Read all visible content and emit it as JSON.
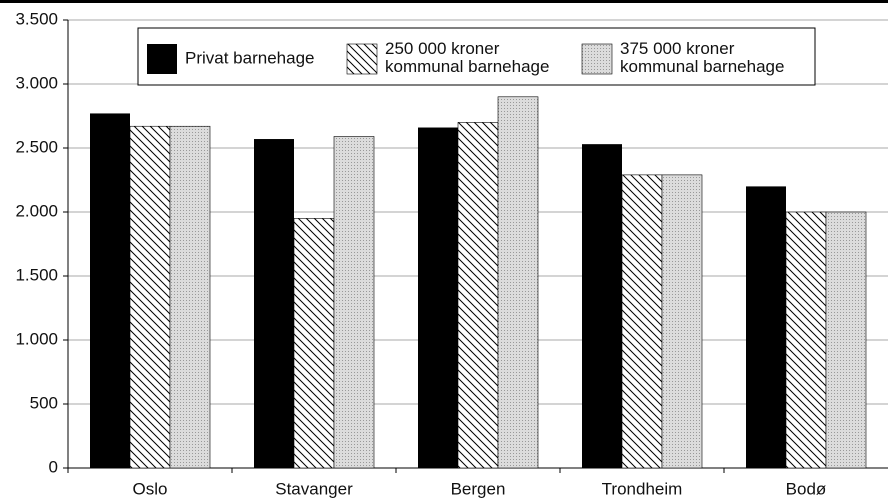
{
  "chart_data": {
    "type": "bar",
    "categories": [
      "Oslo",
      "Stavanger",
      "Bergen",
      "Trondheim",
      "Bodø"
    ],
    "series": [
      {
        "name": "Privat barnehage",
        "color": "#000000",
        "values": [
          2770,
          2570,
          2660,
          2530,
          2200
        ]
      },
      {
        "name": "250 000 kroner\nkommunal barnehage",
        "color": "#ffffff",
        "pattern": "hatch",
        "values": [
          2670,
          1950,
          2700,
          2290,
          2000
        ]
      },
      {
        "name": "375 000 kroner\nkommunal barnehage",
        "color": "#dcdcdc",
        "pattern": "dots",
        "values": [
          2670,
          2590,
          2900,
          2290,
          2000
        ]
      }
    ],
    "ylim": [
      0,
      3500
    ],
    "yticks": [
      0,
      500,
      {
        "value": 1000,
        "label": "1.000"
      },
      {
        "value": 1500,
        "label": "1.500"
      },
      {
        "value": 2000,
        "label": "2.000"
      },
      {
        "value": 2500,
        "label": "2.500"
      },
      {
        "value": 3000,
        "label": "3.000"
      },
      {
        "value": 3500,
        "label": "3.500"
      }
    ],
    "grid": true,
    "legend": "top"
  }
}
